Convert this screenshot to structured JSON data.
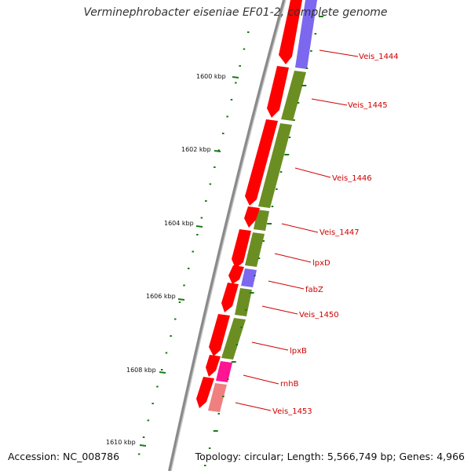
{
  "title": "Verminephrobacter eiseniae EF01-2, complete genome",
  "accession": "Accession: NC_008786",
  "topology": "Topology: circular; Length: 5,566,749 bp; Genes: 4,966",
  "scale_labels": [
    "1600 kbp",
    "1602 kbp",
    "1604 kbp",
    "1606 kbp",
    "1608 kbp",
    "1610 kbp"
  ],
  "colors": {
    "backbone": "#8a8a8a",
    "cds": "#ff0000",
    "gene_olive": "#6b8e23",
    "gene_purple": "#7b68ee",
    "gene_magenta": "#ff1493",
    "gene_pink": "#f08080",
    "ticks": "#1a7a1a",
    "labels": "#d00000"
  },
  "gene_labels": [
    "Veis_1444",
    "Veis_1445",
    "Veis_1446",
    "Veis_1447",
    "lpxD",
    "fabZ",
    "Veis_1450",
    "lpxB",
    "rnhB",
    "Veis_1453"
  ]
}
